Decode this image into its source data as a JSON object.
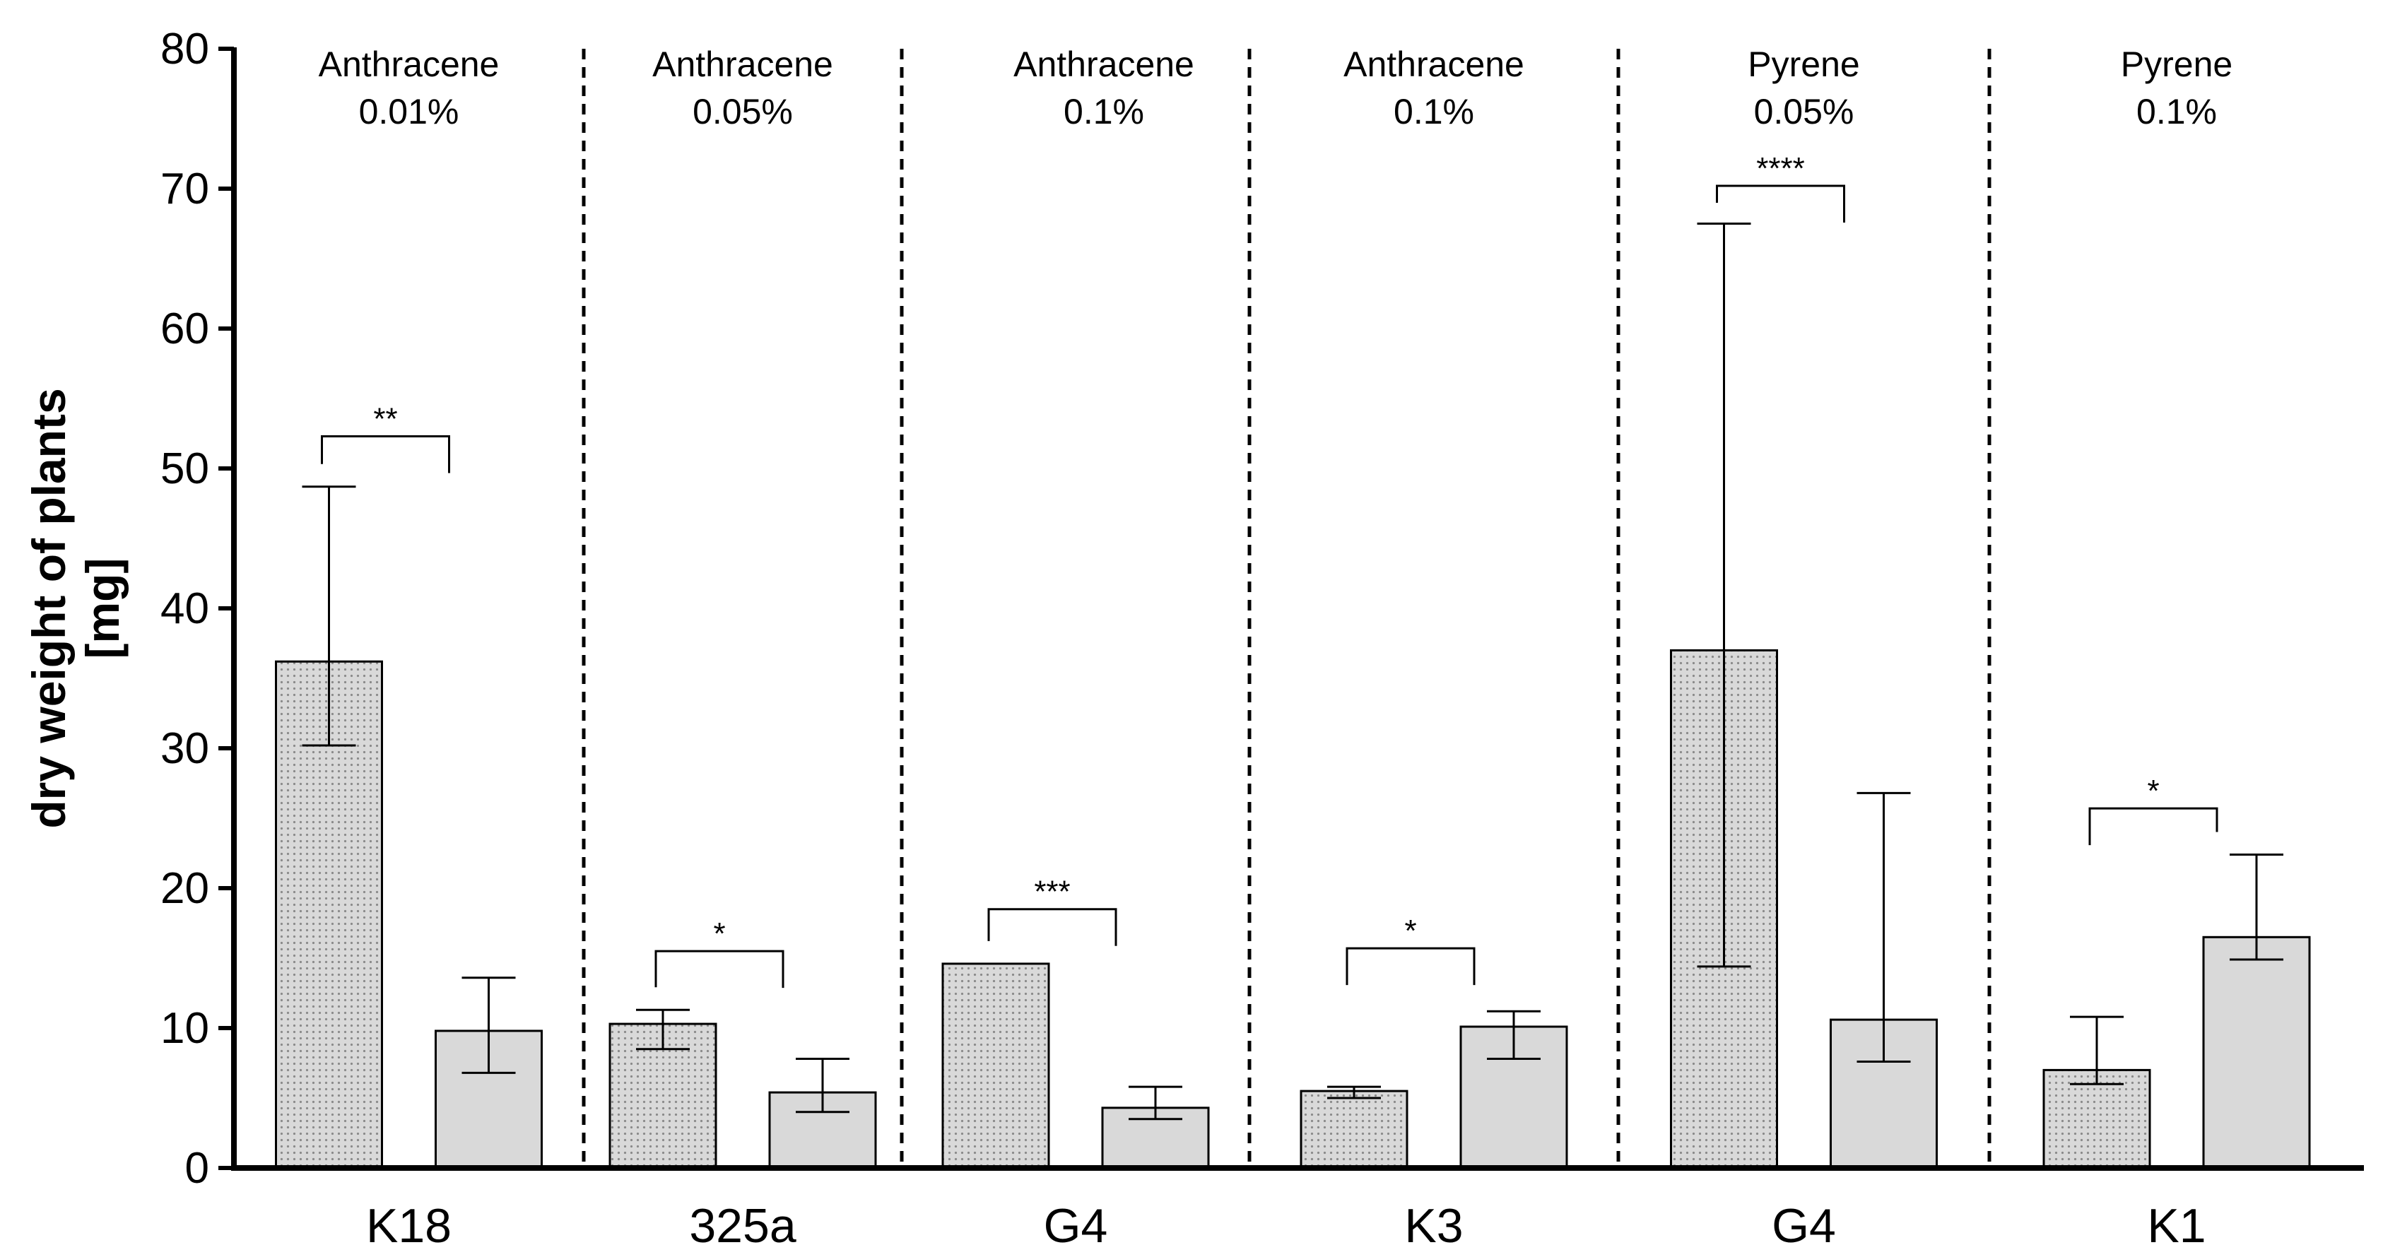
{
  "chart_data": {
    "type": "bar",
    "ylabel": [
      "dry weight of plants",
      "[mg]"
    ],
    "ylim": [
      0,
      80
    ],
    "yticks": [
      0,
      10,
      20,
      30,
      40,
      50,
      60,
      70,
      80
    ],
    "grid": false,
    "groups": [
      {
        "label": "K18",
        "treatment": [
          "Anthracene",
          "0.01%"
        ],
        "bars": [
          {
            "pattern": "dotted",
            "value": 36.2,
            "err_low": 30.2,
            "err_high": 48.7
          },
          {
            "pattern": "solid",
            "value": 9.8,
            "err_low": 6.8,
            "err_high": 13.6
          }
        ],
        "significance": "**",
        "bracket_y": 52.3
      },
      {
        "label": "325a",
        "treatment": [
          "Anthracene",
          "0.05%"
        ],
        "bars": [
          {
            "pattern": "dotted",
            "value": 10.3,
            "err_low": 8.5,
            "err_high": 11.3
          },
          {
            "pattern": "solid",
            "value": 5.4,
            "err_low": 4.0,
            "err_high": 7.8
          }
        ],
        "significance": "*",
        "bracket_y": 15.5
      },
      {
        "label": "G4",
        "treatment": [
          "Anthracene",
          "0.1%"
        ],
        "bars": [
          {
            "pattern": "dotted",
            "value": 14.6,
            "err_low": 14.6,
            "err_high": 14.6
          },
          {
            "pattern": "solid",
            "value": 4.3,
            "err_low": 3.5,
            "err_high": 5.8
          }
        ],
        "significance": "***",
        "bracket_y": 18.5
      },
      {
        "label": "K3",
        "treatment": [
          "Anthracene",
          "0.1%"
        ],
        "bars": [
          {
            "pattern": "dotted",
            "value": 5.5,
            "err_low": 5.0,
            "err_high": 5.8
          },
          {
            "pattern": "solid",
            "value": 10.1,
            "err_low": 7.8,
            "err_high": 11.2
          }
        ],
        "significance": "*",
        "bracket_y": 15.7
      },
      {
        "label": "G4",
        "treatment": [
          "Pyrene",
          "0.05%"
        ],
        "bars": [
          {
            "pattern": "dotted",
            "value": 37.0,
            "err_low": 14.4,
            "err_high": 67.5
          },
          {
            "pattern": "solid",
            "value": 10.6,
            "err_low": 7.6,
            "err_high": 26.8
          }
        ],
        "significance": "****",
        "bracket_y": 70.2
      },
      {
        "label": "K1",
        "treatment": [
          "Pyrene",
          "0.1%"
        ],
        "bars": [
          {
            "pattern": "dotted",
            "value": 7.0,
            "err_low": 6.0,
            "err_high": 10.8
          },
          {
            "pattern": "solid",
            "value": 16.5,
            "err_low": 14.9,
            "err_high": 22.4
          }
        ],
        "significance": "*",
        "bracket_y": 25.7
      }
    ],
    "colors": {
      "bar_fill": "#d9d9d9",
      "dot": "#8a8a8a",
      "stroke": "#000000"
    }
  }
}
